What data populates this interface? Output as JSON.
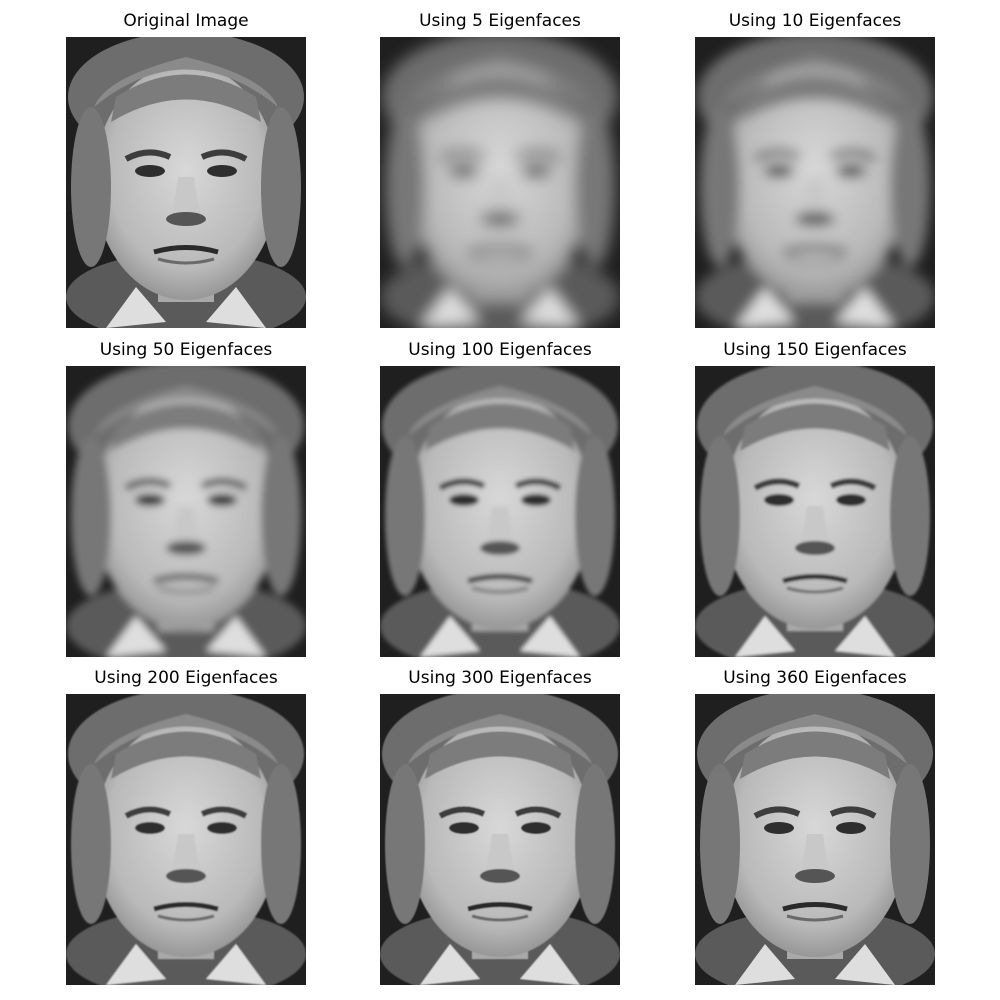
{
  "panels": [
    {
      "title": "Original Image",
      "blur": 0.2
    },
    {
      "title": "Using 5 Eigenfaces",
      "blur": 7.5
    },
    {
      "title": "Using 10 Eigenfaces",
      "blur": 6
    },
    {
      "title": "Using 50 Eigenfaces",
      "blur": 3.8
    },
    {
      "title": "Using 100 Eigenfaces",
      "blur": 2.2
    },
    {
      "title": "Using 150 Eigenfaces",
      "blur": 1.4
    },
    {
      "title": "Using 200 Eigenfaces",
      "blur": 0.8
    },
    {
      "title": "Using 300 Eigenfaces",
      "blur": 0.5
    },
    {
      "title": "Using 360 Eigenfaces",
      "blur": 0.3
    }
  ]
}
